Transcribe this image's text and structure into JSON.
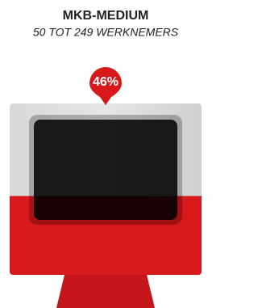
{
  "chart_data": {
    "type": "pictogram",
    "title": "MKB-MEDIUM",
    "subtitle": "50 TOT 249 WERKNEMERS",
    "values": [
      46
    ],
    "value_labels": [
      "46%"
    ],
    "ylim": [
      0,
      100
    ],
    "color": "#d7191c"
  }
}
